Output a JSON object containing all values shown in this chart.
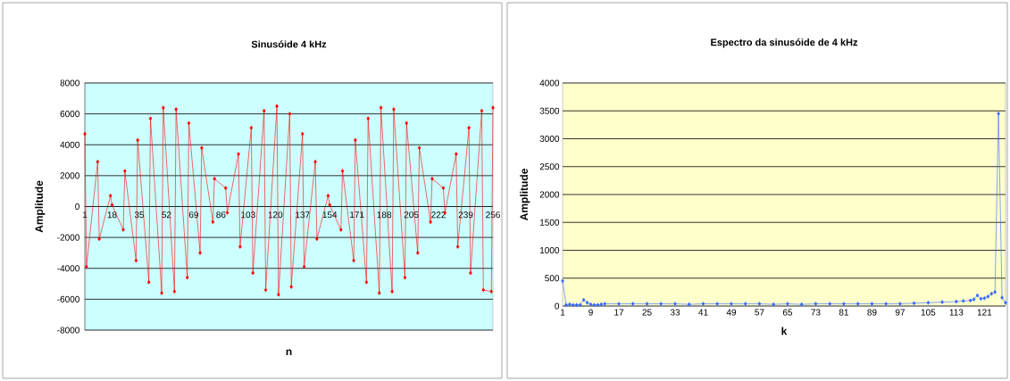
{
  "chart_data": [
    {
      "type": "line",
      "title": "Sinusóide 4 kHz",
      "xlabel": "n",
      "ylabel": "Amplitude",
      "color": "#ff0000",
      "marker": "diamond",
      "line_style": "solid",
      "grid": "y",
      "xlim": [
        1,
        256
      ],
      "xticks": [
        1,
        18,
        35,
        52,
        69,
        86,
        103,
        120,
        137,
        154,
        171,
        188,
        205,
        222,
        239,
        256
      ],
      "ylim": [
        -8000,
        8000
      ],
      "yticks": [
        -8000,
        -6000,
        -4000,
        -2000,
        0,
        2000,
        4000,
        6000,
        8000
      ],
      "x": [
        1,
        2,
        9,
        10,
        17,
        18,
        25,
        26,
        33,
        34,
        41,
        42,
        49,
        50,
        57,
        58,
        65,
        66,
        73,
        74,
        81,
        82,
        89,
        90,
        97,
        98,
        105,
        106,
        113,
        114,
        121,
        122,
        129,
        130,
        137,
        138,
        145,
        146,
        153,
        154,
        161,
        162,
        169,
        170,
        177,
        178,
        185,
        186,
        193,
        194,
        201,
        202,
        209,
        210,
        217,
        218,
        225,
        226,
        233,
        234,
        241,
        242,
        249,
        250,
        255,
        256
      ],
      "values": [
        4700,
        -3900,
        2900,
        -2100,
        700,
        100,
        -1500,
        2300,
        -3500,
        4300,
        -4900,
        5700,
        -5600,
        6400,
        -5500,
        6300,
        -4600,
        5400,
        -3000,
        3800,
        -1000,
        1800,
        1200,
        -400,
        3400,
        -2600,
        5100,
        -4300,
        6200,
        -5400,
        6500,
        -5700,
        6000,
        -5200,
        4700,
        -3900,
        2900,
        -2100,
        700,
        100,
        -1500,
        2300,
        -3500,
        4300,
        -4900,
        5700,
        -5600,
        6400,
        -5500,
        6300,
        -4600,
        5400,
        -3000,
        3800,
        -1000,
        1800,
        1200,
        -400,
        3400,
        -2600,
        5100,
        -4300,
        6200,
        -5400,
        -5500,
        6400
      ]
    },
    {
      "type": "line",
      "title": "Espectro da sinusóide de 4 kHz",
      "xlabel": "k",
      "ylabel": "Amplitude",
      "color": "#3366ff",
      "marker": "diamond",
      "line_style": "solid",
      "grid": "y",
      "xlim": [
        1,
        127
      ],
      "xticks": [
        1,
        9,
        17,
        25,
        33,
        41,
        49,
        57,
        65,
        73,
        81,
        89,
        97,
        105,
        113,
        121
      ],
      "ylim": [
        0,
        4000
      ],
      "yticks": [
        0,
        500,
        1000,
        1500,
        2000,
        2500,
        3000,
        3500,
        4000
      ],
      "x": [
        1,
        2,
        3,
        4,
        5,
        6,
        7,
        8,
        9,
        10,
        11,
        12,
        13,
        17,
        21,
        25,
        29,
        33,
        37,
        41,
        45,
        49,
        53,
        57,
        61,
        65,
        69,
        73,
        77,
        81,
        85,
        89,
        93,
        97,
        101,
        105,
        109,
        113,
        115,
        117,
        118,
        119,
        120,
        121,
        122,
        123,
        124,
        125,
        126,
        127
      ],
      "values": [
        450,
        20,
        30,
        20,
        20,
        20,
        110,
        60,
        30,
        20,
        20,
        30,
        40,
        40,
        40,
        40,
        40,
        40,
        30,
        40,
        40,
        40,
        40,
        40,
        30,
        40,
        30,
        40,
        40,
        40,
        40,
        40,
        40,
        40,
        50,
        60,
        70,
        80,
        90,
        100,
        120,
        190,
        130,
        140,
        170,
        220,
        250,
        3450,
        150,
        60
      ]
    }
  ]
}
